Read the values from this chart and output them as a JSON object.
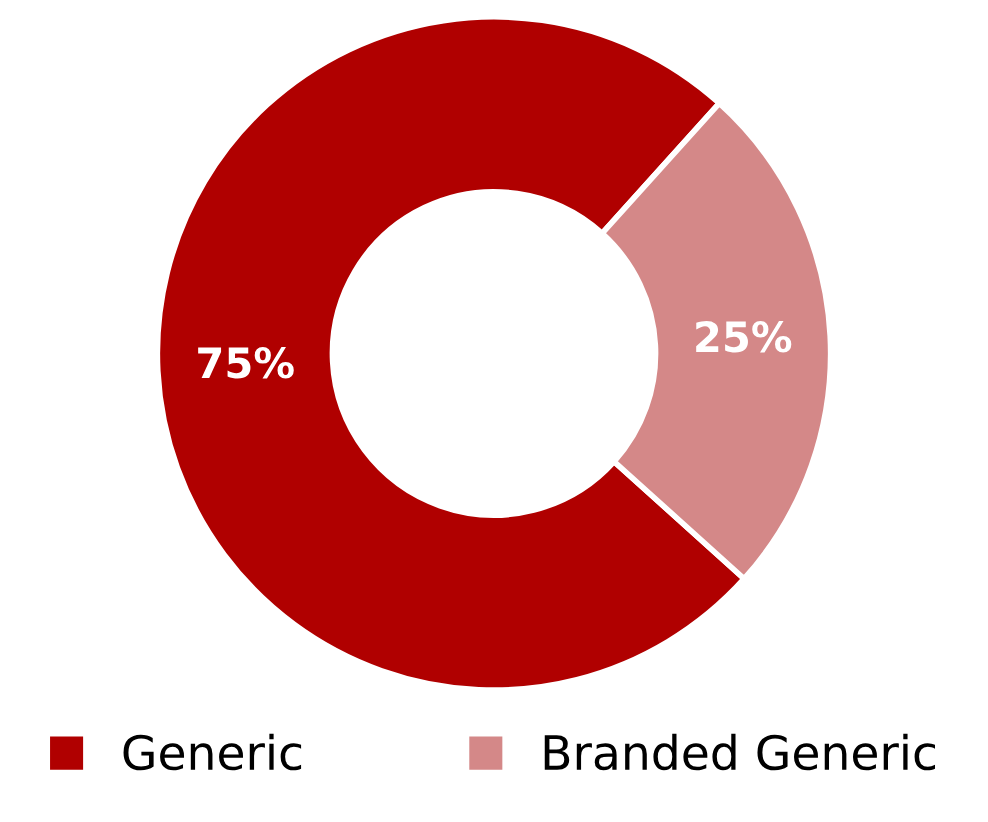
{
  "chart_data": {
    "type": "donut",
    "categories": [
      "Generic",
      "Branded Generic"
    ],
    "values": [
      75,
      25
    ],
    "colors": [
      "#b00000",
      "#d48888"
    ],
    "value_labels": [
      "75%",
      "25%"
    ],
    "legend": "bottom"
  }
}
